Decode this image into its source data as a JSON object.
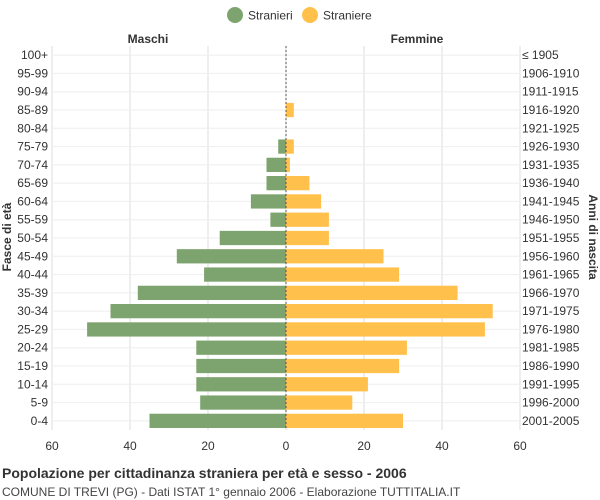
{
  "legend": [
    {
      "name": "Stranieri",
      "color": "#7da46f"
    },
    {
      "name": "Straniere",
      "color": "#ffc04c"
    }
  ],
  "headers": {
    "left": "Maschi",
    "right": "Femmine"
  },
  "footer": {
    "title": "Popolazione per cittadinanza straniera per età e sesso - 2006",
    "subtitle": "COMUNE DI TREVI (PG) - Dati ISTAT 1° gennaio 2006 - Elaborazione TUTTITALIA.IT"
  },
  "chart_data": {
    "type": "bar",
    "orientation": "horizontal-population-pyramid",
    "ylabel": "Fasce di età",
    "ylabel_right": "Anni di nascita",
    "xlim": [
      -60,
      60
    ],
    "x_ticks": [
      "60",
      "40",
      "20",
      "0",
      "20",
      "40",
      "60"
    ],
    "grid": true,
    "legend_position": "top-center",
    "categories": [
      "100+",
      "95-99",
      "90-94",
      "85-89",
      "80-84",
      "75-79",
      "70-74",
      "65-69",
      "60-64",
      "55-59",
      "50-54",
      "45-49",
      "40-44",
      "35-39",
      "30-34",
      "25-29",
      "20-24",
      "15-19",
      "10-14",
      "5-9",
      "0-4"
    ],
    "birth_years": [
      "≤ 1905",
      "1906-1910",
      "1911-1915",
      "1916-1920",
      "1921-1925",
      "1926-1930",
      "1931-1935",
      "1936-1940",
      "1941-1945",
      "1946-1950",
      "1951-1955",
      "1956-1960",
      "1961-1965",
      "1966-1970",
      "1971-1975",
      "1976-1980",
      "1981-1985",
      "1986-1990",
      "1991-1995",
      "1996-2000",
      "2001-2005"
    ],
    "series": [
      {
        "name": "Stranieri",
        "color": "#7da46f",
        "side": "left",
        "values": [
          0,
          0,
          0,
          0,
          0,
          2,
          5,
          5,
          9,
          4,
          17,
          28,
          21,
          38,
          45,
          51,
          23,
          23,
          23,
          22,
          35
        ]
      },
      {
        "name": "Straniere",
        "color": "#ffc04c",
        "side": "right",
        "values": [
          0,
          0,
          0,
          2,
          0,
          2,
          1,
          6,
          9,
          11,
          11,
          25,
          29,
          44,
          53,
          51,
          31,
          29,
          21,
          17,
          30
        ]
      }
    ]
  }
}
